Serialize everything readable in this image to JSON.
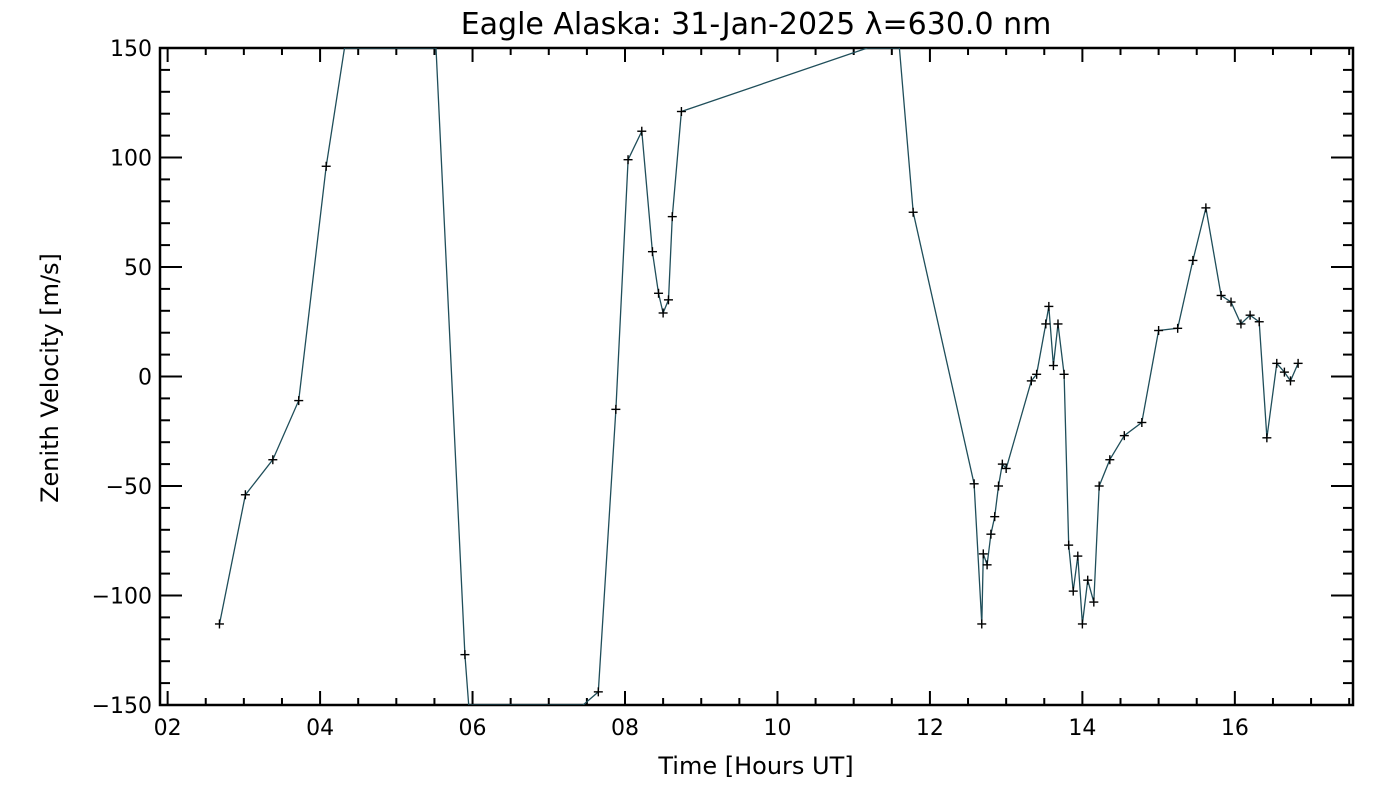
{
  "chart_data": {
    "type": "line",
    "title": "Eagle Alaska: 31-Jan-2025 λ=630.0 nm",
    "xlabel": "Time [Hours UT]",
    "ylabel": "Zenith Velocity [m/s]",
    "xlim": [
      1.9,
      17.55
    ],
    "ylim": [
      -150,
      150
    ],
    "x_ticks": [
      2,
      4,
      6,
      8,
      10,
      12,
      14,
      16
    ],
    "x_tick_labels": [
      "02",
      "04",
      "06",
      "08",
      "10",
      "12",
      "14",
      "16"
    ],
    "y_ticks": [
      -150,
      -100,
      -50,
      0,
      50,
      100,
      150
    ],
    "y_tick_labels": [
      "-150",
      "-100",
      "-50",
      "0",
      "50",
      "100",
      "150"
    ],
    "grid": false,
    "line_color": "#1f4e5a",
    "marker_color": "#000000",
    "series": [
      {
        "x": [
          2.68,
          3.02,
          3.38,
          3.72,
          4.08,
          4.32,
          5.52,
          5.9,
          5.95,
          7.45,
          7.65,
          7.88,
          8.04,
          8.22,
          8.36,
          8.44,
          8.5,
          8.57,
          8.62,
          8.74,
          11.18,
          11.6,
          11.78,
          12.58,
          12.68,
          12.7,
          12.75,
          12.8,
          12.85,
          12.9,
          12.95,
          13.0,
          13.33,
          13.4,
          13.52,
          13.56,
          13.62,
          13.68,
          13.76,
          13.82,
          13.88,
          13.94,
          14.0,
          14.07,
          14.15,
          14.22,
          14.36,
          14.55,
          14.78,
          15.0,
          15.25,
          15.45,
          15.62,
          15.82,
          15.95,
          16.08,
          16.2,
          16.32,
          16.42,
          16.55,
          16.65,
          16.73,
          16.83
        ],
        "y": [
          -113,
          -54,
          -38,
          -11,
          96,
          150,
          150,
          -127,
          -150,
          -150,
          -144,
          -15,
          99,
          112,
          57,
          38,
          29,
          35,
          73,
          121,
          150,
          150,
          75,
          -49,
          -113,
          -81,
          -86,
          -72,
          -64,
          -50,
          -40,
          -42,
          -2,
          1,
          24,
          32,
          5,
          24,
          1,
          -77,
          -98,
          -82,
          -113,
          -93,
          -103,
          -50,
          -38,
          -27,
          -21,
          21,
          22,
          53,
          77,
          37,
          34,
          24,
          28,
          25,
          -28,
          6,
          2,
          -2,
          6
        ]
      }
    ]
  }
}
